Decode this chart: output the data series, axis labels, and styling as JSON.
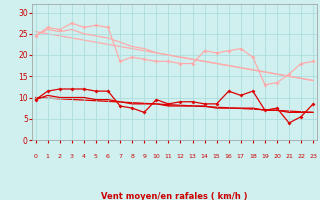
{
  "x": [
    0,
    1,
    2,
    3,
    4,
    5,
    6,
    7,
    8,
    9,
    10,
    11,
    12,
    13,
    14,
    15,
    16,
    17,
    18,
    19,
    20,
    21,
    22,
    23
  ],
  "line1": [
    24.5,
    26.5,
    26.0,
    27.5,
    26.5,
    27.0,
    26.5,
    18.5,
    19.5,
    19.0,
    18.5,
    18.5,
    18.0,
    18.0,
    21.0,
    20.5,
    21.0,
    21.5,
    19.5,
    13.0,
    13.5,
    15.5,
    18.0,
    18.5
  ],
  "line1_trend": [
    25.5,
    14.0
  ],
  "line2": [
    24.5,
    26.0,
    25.5,
    26.0,
    25.0,
    24.5,
    24.0,
    23.0,
    22.0,
    21.5,
    20.5,
    20.0,
    19.5,
    19.0,
    18.5,
    18.0,
    17.5,
    17.0,
    16.5,
    16.0,
    15.5,
    15.0,
    14.5,
    14.0
  ],
  "line3": [
    9.5,
    11.5,
    12.0,
    12.0,
    12.0,
    11.5,
    11.5,
    8.0,
    7.5,
    6.5,
    9.5,
    8.5,
    9.0,
    9.0,
    8.5,
    8.5,
    11.5,
    10.5,
    11.5,
    7.0,
    7.5,
    4.0,
    5.5,
    8.5
  ],
  "line3_trend": [
    10.0,
    6.5
  ],
  "line4": [
    9.5,
    10.5,
    10.0,
    10.0,
    10.0,
    9.5,
    9.5,
    9.0,
    8.5,
    8.5,
    8.5,
    8.0,
    8.0,
    8.0,
    8.0,
    7.5,
    7.5,
    7.5,
    7.5,
    7.0,
    7.0,
    6.5,
    6.5,
    6.5
  ],
  "arrow_labels": [
    "↓",
    "↓",
    "↓",
    "↓",
    "↓",
    "↓",
    "↓",
    "→",
    "↓",
    "↓",
    "↓",
    "↓",
    "↓",
    "↓",
    "↓",
    "↓",
    "↓",
    "↓",
    "↓",
    "↓",
    "↓",
    "↓",
    "↘",
    "↘"
  ],
  "color_light": "#ffaaaa",
  "color_dark": "#dd0000",
  "bg_color": "#d0f0f0",
  "grid_color": "#aadddd",
  "xlabel": "Vent moyen/en rafales ( km/h )",
  "xlabel_color": "#cc0000",
  "tick_color": "#cc0000",
  "ylim": [
    0,
    32
  ],
  "yticks": [
    0,
    5,
    10,
    15,
    20,
    25,
    30
  ],
  "xlim": [
    -0.3,
    23.3
  ]
}
